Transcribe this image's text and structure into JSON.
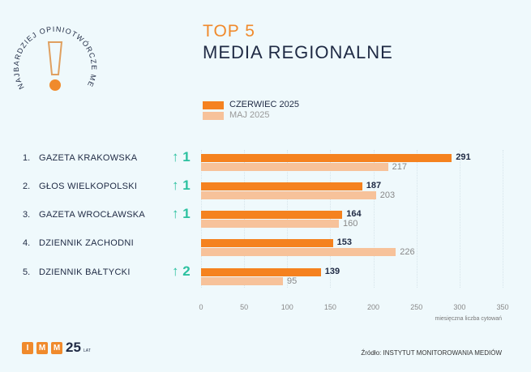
{
  "badge": {
    "text": "NAJBARDZIEJ OPINIOTWÓRCZE MEDIA"
  },
  "header": {
    "line1": "TOP 5",
    "line2": "MEDIA REGIONALNE"
  },
  "logo": {
    "letters": [
      "I",
      "M",
      "M"
    ],
    "years": "25",
    "lat": "LAT"
  },
  "source": "Źródło: INSTYTUT MONITOROWANIA MEDIÓW",
  "colors": {
    "current": "#f5821f",
    "previous": "#f7c29a",
    "up": "#2cc1a0"
  },
  "chart_data": {
    "type": "bar",
    "orientation": "horizontal",
    "title": "TOP 5 MEDIA REGIONALNE",
    "xlabel": "miesięczna liczba cytowań",
    "xlim": [
      0,
      350
    ],
    "ticks": [
      "0",
      "50",
      "100",
      "150",
      "200",
      "250",
      "300",
      "350"
    ],
    "legend_position": "top",
    "ranks": [
      "1.",
      "2.",
      "3.",
      "4.",
      "5."
    ],
    "categories": [
      "GAZETA KRAKOWSKA",
      "GŁOS WIELKOPOLSKI",
      "GAZETA WROCŁAWSKA",
      "DZIENNIK ZACHODNI",
      "DZIENNIK BAŁTYCKI"
    ],
    "rank_change": [
      "↑ 1",
      "↑ 1",
      "↑ 1",
      "",
      "↑ 2"
    ],
    "series": [
      {
        "name": "CZERWIEC 2025",
        "values": [
          291,
          187,
          164,
          153,
          139
        ]
      },
      {
        "name": "MAJ 2025",
        "values": [
          217,
          203,
          160,
          226,
          95
        ]
      }
    ]
  }
}
